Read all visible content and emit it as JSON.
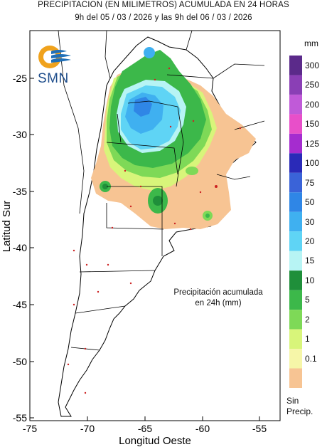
{
  "header": {
    "title": "PRECIPITACION (EN MILIMETROS) ACUMULADA EN 24 HORAS",
    "period": "9h del 05 / 03 / 2026  y las 9h del 06 / 03 / 2026"
  },
  "logo": {
    "text": "SMN",
    "icon": "smn-sun-waves-icon"
  },
  "axes": {
    "x_title": "Longitud Oeste",
    "y_title": "Latitud Sur",
    "x_ticks": [
      "-75",
      "-70",
      "-65",
      "-60",
      "-55"
    ],
    "y_ticks": [
      "-25",
      "-30",
      "-35",
      "-40",
      "-45",
      "-50",
      "-55"
    ]
  },
  "legend": {
    "unit": "mm",
    "levels": [
      {
        "label": "300",
        "color": "#5b2a8a"
      },
      {
        "label": "250",
        "color": "#8a3fb5"
      },
      {
        "label": "200",
        "color": "#c05ad8"
      },
      {
        "label": "150",
        "color": "#e84fc9"
      },
      {
        "label": "125",
        "color": "#a52ccf"
      },
      {
        "label": "100",
        "color": "#2a2ab8"
      },
      {
        "label": "75",
        "color": "#3a63d8"
      },
      {
        "label": "50",
        "color": "#2f86e6"
      },
      {
        "label": "30",
        "color": "#3fb0f0"
      },
      {
        "label": "20",
        "color": "#5fd4f5"
      },
      {
        "label": "15",
        "color": "#b7f4f4"
      },
      {
        "label": "10",
        "color": "#1f8f3a"
      },
      {
        "label": "5",
        "color": "#3cb84a"
      },
      {
        "label": "2",
        "color": "#7ed957"
      },
      {
        "label": "1",
        "color": "#d8f57a"
      },
      {
        "label": "0.1",
        "color": "#f6f6a8"
      },
      {
        "label": "",
        "color": "#f7c493"
      }
    ],
    "no_precip_label_1": "Sin",
    "no_precip_label_2": "Precip."
  },
  "note": {
    "line1": "Precipitación acumulada",
    "line2": "en 24h (mm)"
  }
}
